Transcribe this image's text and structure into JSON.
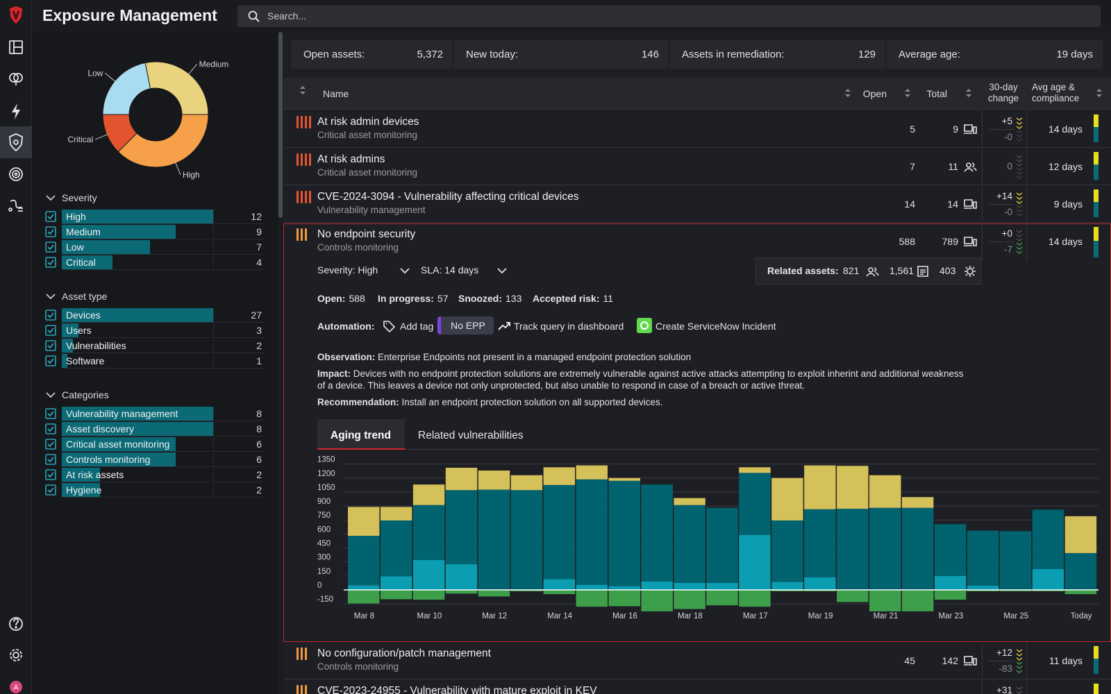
{
  "header": {
    "title": "Exposure Management",
    "search_placeholder": "Search..."
  },
  "user": {
    "avatar": "A"
  },
  "donut": {
    "type": "pie",
    "categories": [
      "High",
      "Critical",
      "Low",
      "Medium"
    ],
    "values": [
      12,
      4,
      7,
      9
    ],
    "colors": [
      "#f7a04a",
      "#e2532e",
      "#a9dcf1",
      "#ead37f"
    ]
  },
  "filters": [
    {
      "title": "Severity",
      "items": [
        {
          "label": "High",
          "count": 12
        },
        {
          "label": "Medium",
          "count": 9
        },
        {
          "label": "Low",
          "count": 7
        },
        {
          "label": "Critical",
          "count": 4
        }
      ]
    },
    {
      "title": "Asset type",
      "items": [
        {
          "label": "Devices",
          "count": 27
        },
        {
          "label": "Users",
          "count": 3
        },
        {
          "label": "Vulnerabilities",
          "count": 2
        },
        {
          "label": "Software",
          "count": 1
        }
      ]
    },
    {
      "title": "Categories",
      "items": [
        {
          "label": "Vulnerability management",
          "count": 8
        },
        {
          "label": "Asset discovery",
          "count": 8
        },
        {
          "label": "Critical asset monitoring",
          "count": 6
        },
        {
          "label": "Controls monitoring",
          "count": 6
        },
        {
          "label": "At risk assets",
          "count": 2
        },
        {
          "label": "Hygiene",
          "count": 2
        }
      ]
    }
  ],
  "stats": [
    {
      "label": "Open assets:",
      "value": "5,372"
    },
    {
      "label": "New today:",
      "value": "146"
    },
    {
      "label": "Assets in remediation:",
      "value": "129"
    },
    {
      "label": "Average age:",
      "value": "19 days"
    }
  ],
  "table": {
    "columns": [
      "Name",
      "Open",
      "Total",
      "30-day change",
      "Avg age & compliance"
    ],
    "rows": [
      {
        "name": "At risk admin devices",
        "category": "Critical asset monitoring",
        "open": "5",
        "total": "9",
        "icon": "device",
        "change": [
          "+5",
          "-0"
        ],
        "avg_age": "14 days",
        "level": 4,
        "level_color": "#e8542f"
      },
      {
        "name": "At risk admins",
        "category": "Critical asset monitoring",
        "open": "7",
        "total": "11",
        "icon": "users",
        "change": [
          "0"
        ],
        "avg_age": "12 days",
        "level": 4,
        "level_color": "#e8542f"
      },
      {
        "name": "CVE-2024-3094 - Vulnerability affecting critical devices",
        "category": "Vulnerability management",
        "open": "14",
        "total": "14",
        "icon": "device",
        "change": [
          "+14",
          "-0"
        ],
        "avg_age": "9 days",
        "level": 4,
        "level_color": "#e8542f"
      },
      {
        "name": "No endpoint security",
        "category": "Controls monitoring",
        "open": "588",
        "total": "789",
        "icon": "device",
        "change": [
          "+0",
          "-7"
        ],
        "avg_age": "14 days",
        "level": 3,
        "level_color": "#f39a3d",
        "details": {
          "severity": "Severity: High",
          "sla": "SLA: 14 days",
          "related": {
            "label": "Related assets:",
            "values": [
              "821",
              "1,561",
              "403"
            ]
          },
          "counts": [
            {
              "label": "Open:",
              "value": "588"
            },
            {
              "label": "In progress:",
              "value": "57"
            },
            {
              "label": "Snoozed:",
              "value": "133"
            },
            {
              "label": "Accepted risk:",
              "value": "11"
            }
          ],
          "automation": {
            "label": "Automation:",
            "add_tag": "Add tag",
            "tag": "No EPP",
            "track": "Track query in dashboard",
            "servicenow": "Create ServiceNow Incident"
          },
          "notes": [
            {
              "label": "Observation:",
              "text": "Enterprise Endpoints not present in a managed endpoint protection solution"
            },
            {
              "label": "Impact:",
              "text": "Devices with no endpoint protection solutions are extremely vulnerable against active attacks attempting to exploit inherint and additional weakness of a device. This leaves a device not only unprotected, but also unable to respond in case of a breach or active threat."
            },
            {
              "label": "Recommendation:",
              "text": "Install an endpoint protection solution on all supported devices."
            }
          ],
          "tabs": [
            "Aging trend",
            "Related vulnerabilities"
          ],
          "aging_trend": {
            "type": "bar",
            "stacked": true,
            "categories": [
              "Mar 8",
              null,
              "Mar 10",
              null,
              "Mar 12",
              null,
              "Mar 14",
              null,
              "Mar 16",
              null,
              "Mar 18",
              null,
              "Mar 17",
              null,
              "Mar 19",
              null,
              "Mar 21",
              null,
              "Mar 23",
              null,
              "Mar 25",
              null,
              "Today"
            ],
            "series": [
              {
                "color": "#3e9f4b",
                "values": [
                  -145,
                  -100,
                  -105,
                  -40,
                  -70,
                  -15,
                  -45,
                  -180,
                  -175,
                  -230,
                  -205,
                  -165,
                  -180,
                  -15,
                  -15,
                  -130,
                  -230,
                  -230,
                  -105,
                  -15,
                  -15,
                  -15,
                  -45
                ]
              },
              {
                "color": "#0b9db1",
                "values": [
                  50,
                  145,
                  320,
                  275,
                  0,
                  0,
                  115,
                  55,
                  40,
                  90,
                  75,
                  75,
                  590,
                  85,
                  135,
                  0,
                  0,
                  0,
                  150,
                  45,
                  0,
                  225,
                  0
                ]
              },
              {
                "color": "#00636f",
                "values": [
                  530,
                  600,
                  590,
                  795,
                  1075,
                  1070,
                  1010,
                  1130,
                  1130,
                  1040,
                  835,
                  805,
                  665,
                  660,
                  730,
                  870,
                  880,
                  880,
                  555,
                  590,
                  630,
                  635,
                  395
                ]
              },
              {
                "color": "#d5c15a",
                "values": [
                  310,
                  145,
                  220,
                  240,
                  205,
                  160,
                  190,
                  150,
                  30,
                  0,
                  75,
                  0,
                  60,
                  455,
                  470,
                  460,
                  350,
                  115,
                  0,
                  0,
                  0,
                  0,
                  395
                ]
              }
            ],
            "ylim": [
              -300,
              1400
            ],
            "yticks": [
              1350,
              1200,
              1050,
              900,
              750,
              600,
              450,
              300,
              150,
              0,
              -150
            ],
            "grid": true
          }
        }
      },
      {
        "name": "No configuration/patch management",
        "category": "Controls monitoring",
        "open": "45",
        "total": "142",
        "icon": "device",
        "change": [
          "+12",
          "-83"
        ],
        "avg_age": "11 days",
        "level": 3,
        "level_color": "#f39a3d"
      },
      {
        "name": "CVE-2023-24955 - Vulnerability with mature exploit in KEV",
        "change": [
          "+31"
        ],
        "level": 3,
        "level_color": "#f39a3d"
      }
    ]
  }
}
